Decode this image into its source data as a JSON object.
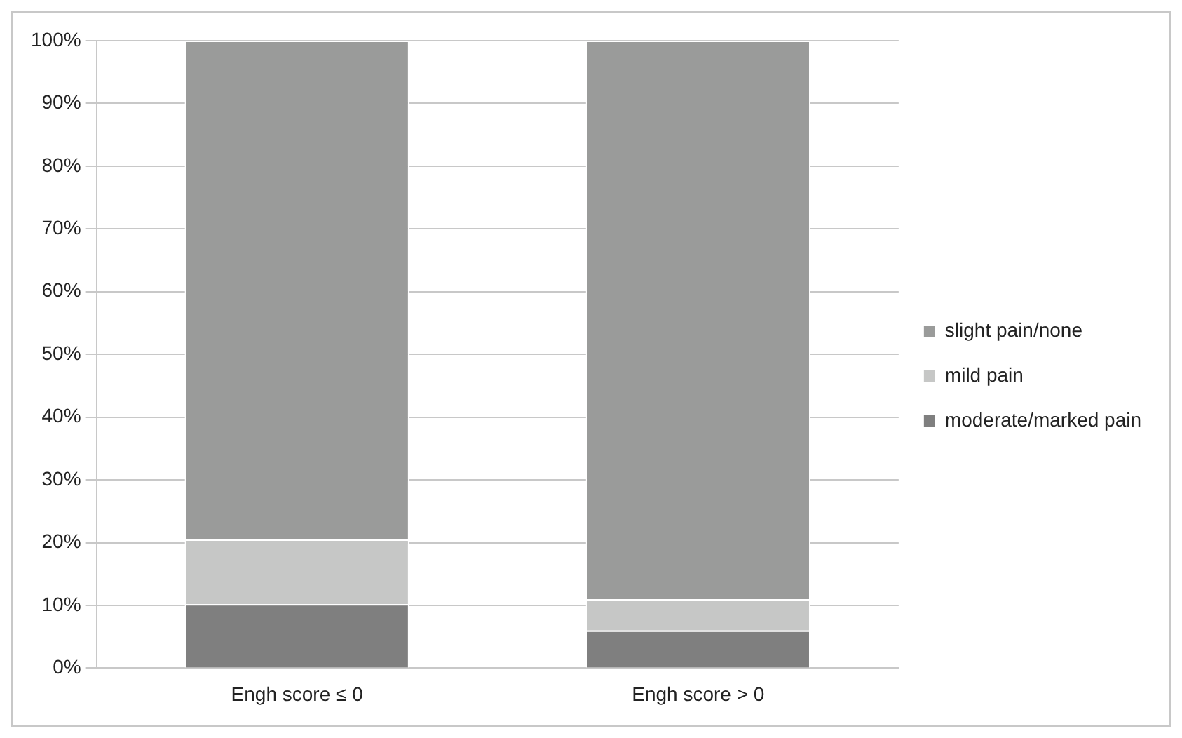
{
  "chart_data": {
    "type": "bar",
    "stacked": true,
    "categories": [
      "Engh score ≤ 0",
      "Engh score > 0"
    ],
    "series": [
      {
        "name": "moderate/marked pain",
        "color": "#7f7f7f",
        "values": [
          10.2,
          6
        ]
      },
      {
        "name": "mild pain",
        "color": "#c6c7c6",
        "values": [
          10.3,
          5
        ]
      },
      {
        "name": "slight pain/none",
        "color": "#9a9b9a",
        "values": [
          79.5,
          89
        ]
      }
    ],
    "ylim": [
      0,
      100
    ],
    "yticks": [
      {
        "value": 0,
        "label": "0%"
      },
      {
        "value": 10,
        "label": "10%"
      },
      {
        "value": 20,
        "label": "20%"
      },
      {
        "value": 30,
        "label": "30%"
      },
      {
        "value": 40,
        "label": "40%"
      },
      {
        "value": 50,
        "label": "50%"
      },
      {
        "value": 60,
        "label": "60%"
      },
      {
        "value": 70,
        "label": "70%"
      },
      {
        "value": 80,
        "label": "80%"
      },
      {
        "value": 90,
        "label": "90%"
      },
      {
        "value": 100,
        "label": "100%"
      }
    ],
    "grid": "y",
    "legend": "right"
  }
}
